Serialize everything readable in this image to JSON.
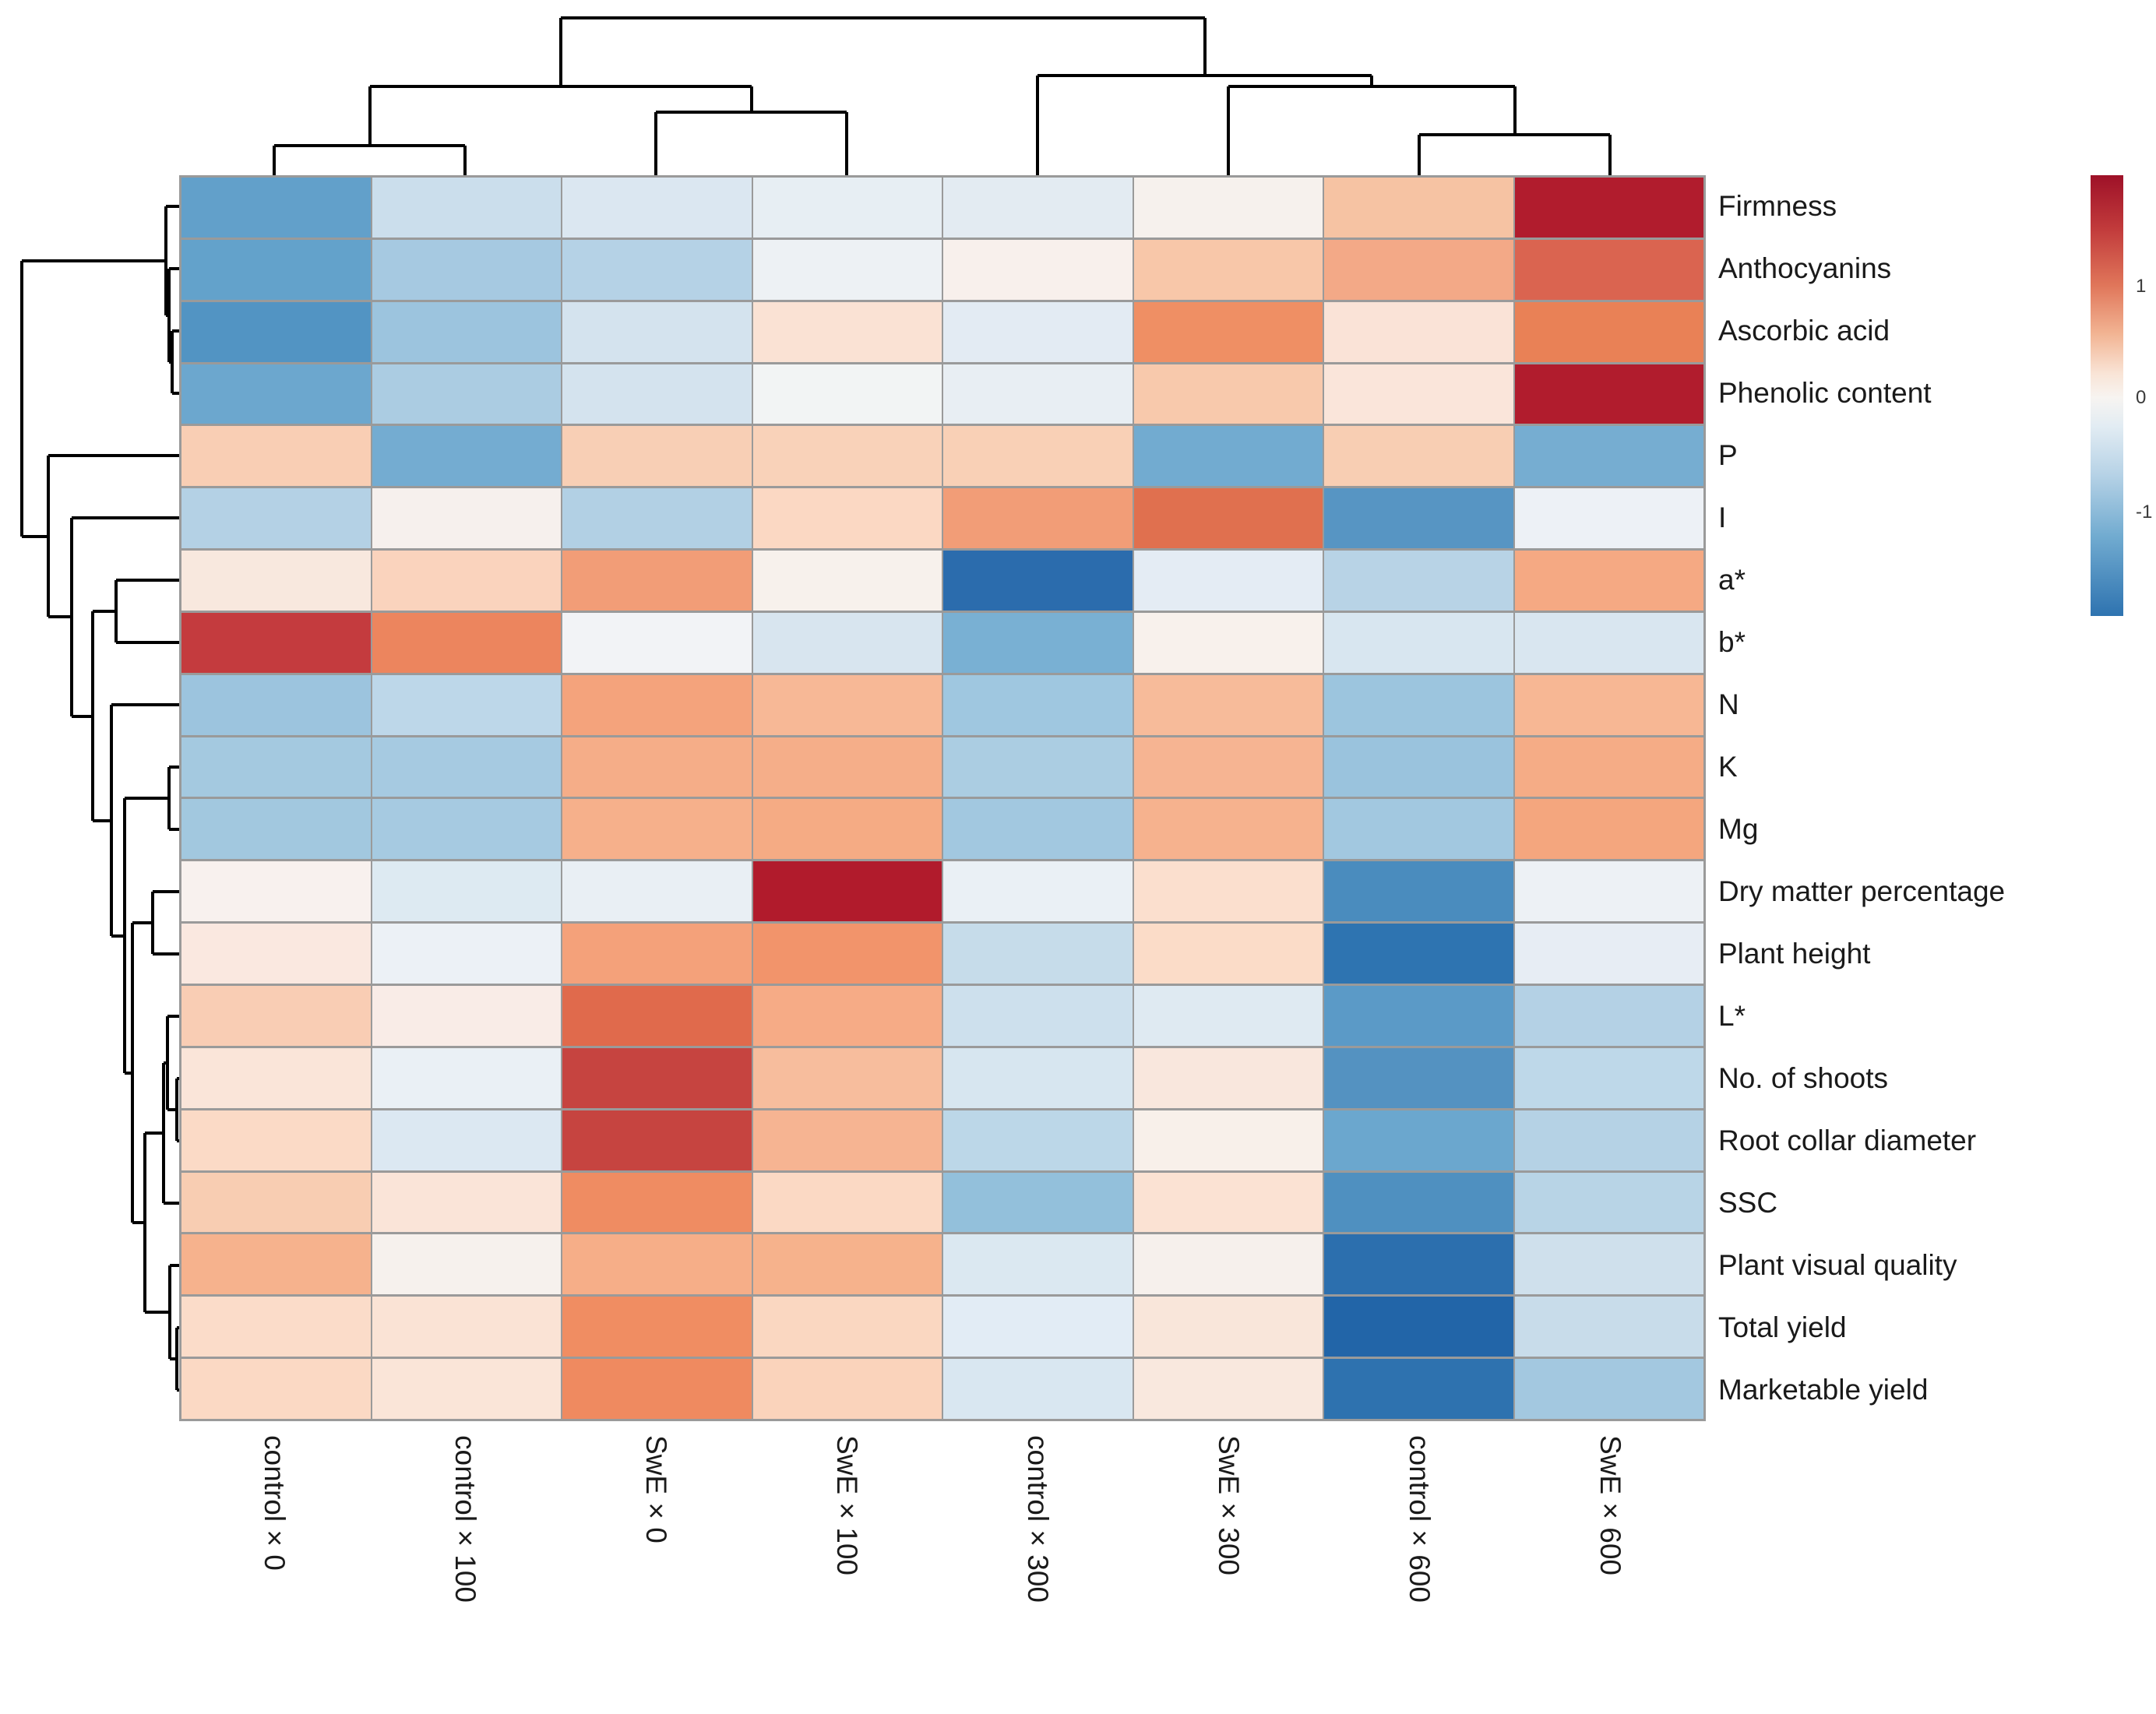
{
  "chart_data": {
    "type": "heatmap",
    "title": "",
    "subtitle": "",
    "columns": [
      "control × 0",
      "control × 100",
      "SwE × 0",
      "SwE × 100",
      "control × 300",
      "SwE × 300",
      "control × 600",
      "SwE × 600"
    ],
    "rows": [
      "Firmness",
      "Anthocyanins",
      "Ascorbic acid",
      "Phenolic content",
      "P",
      "I",
      "a*",
      "b*",
      "N",
      "K",
      "Mg",
      "Dry matter percentage",
      "Plant height",
      "L*",
      "No. of shoots",
      "Root collar diameter",
      "SSC",
      "Plant visual quality",
      "Total yield",
      "Marketable yield"
    ],
    "values": [
      [
        -1.1,
        -0.45,
        -0.3,
        -0.15,
        -0.2,
        0.1,
        0.65,
        1.9
      ],
      [
        -1.05,
        -0.65,
        -0.55,
        -0.1,
        0.1,
        0.6,
        0.9,
        1.3
      ],
      [
        -1.3,
        -0.75,
        -0.35,
        0.3,
        -0.2,
        1.2,
        0.3,
        1.15
      ],
      [
        -1.0,
        -0.6,
        -0.35,
        0.0,
        -0.15,
        0.6,
        0.3,
        1.9
      ],
      [
        0.5,
        -0.95,
        0.5,
        0.45,
        0.5,
        -0.9,
        0.5,
        -0.9
      ],
      [
        -0.6,
        0.1,
        -0.6,
        0.4,
        1.0,
        1.25,
        -1.3,
        -0.1
      ],
      [
        0.25,
        0.45,
        1.0,
        0.1,
        -1.85,
        -0.2,
        -0.55,
        0.85
      ],
      [
        1.6,
        1.2,
        -0.05,
        -0.3,
        -0.85,
        0.1,
        -0.3,
        -0.3
      ],
      [
        -0.75,
        -0.45,
        0.95,
        0.75,
        -0.7,
        0.7,
        -0.75,
        0.75
      ],
      [
        -0.65,
        -0.6,
        0.85,
        0.85,
        -0.6,
        0.75,
        -0.8,
        0.9
      ],
      [
        -0.7,
        -0.65,
        0.8,
        0.9,
        -0.7,
        0.8,
        -0.7,
        0.95
      ],
      [
        0.1,
        -0.25,
        -0.15,
        1.9,
        -0.1,
        0.4,
        -1.5,
        -0.1
      ],
      [
        0.25,
        -0.1,
        1.0,
        1.1,
        -0.4,
        0.4,
        -1.75,
        -0.15
      ],
      [
        0.55,
        0.15,
        1.25,
        0.9,
        -0.35,
        -0.25,
        -1.15,
        -0.6
      ],
      [
        0.3,
        -0.15,
        1.5,
        0.7,
        -0.3,
        0.25,
        -1.3,
        -0.5
      ],
      [
        0.45,
        -0.25,
        1.5,
        0.75,
        -0.55,
        0.1,
        -1.0,
        -0.6
      ],
      [
        0.55,
        0.3,
        1.2,
        0.4,
        -0.8,
        0.35,
        -1.35,
        -0.55
      ],
      [
        0.8,
        0.1,
        0.85,
        0.8,
        -0.3,
        0.1,
        -1.75,
        -0.4
      ],
      [
        0.4,
        0.3,
        1.2,
        0.45,
        -0.2,
        0.3,
        -1.9,
        -0.45
      ],
      [
        0.45,
        0.3,
        1.25,
        0.5,
        -0.3,
        0.25,
        -1.7,
        -0.75
      ]
    ],
    "cell_colors": [
      [
        "#62a0ca",
        "#cbdeec",
        "#dbe7f1",
        "#e7eef3",
        "#e3ebf2",
        "#f6f1ed",
        "#f6c3a3",
        "#b11c2d"
      ],
      [
        "#63a2cb",
        "#a6c9e1",
        "#b5d2e6",
        "#edf1f4",
        "#f8f0ec",
        "#f8c7a9",
        "#f3a987",
        "#da6450"
      ],
      [
        "#5294c3",
        "#9cc4de",
        "#d4e3ee",
        "#fae2d4",
        "#e3ebf3",
        "#ef8f64",
        "#fae3d7",
        "#e98156"
      ],
      [
        "#6ca7ce",
        "#abcce2",
        "#d4e3ee",
        "#f2f4f4",
        "#e8eef3",
        "#f8c9ac",
        "#fae5da",
        "#b11c2d"
      ],
      [
        "#f9ceb4",
        "#74acd1",
        "#f8cfb5",
        "#f9d2b9",
        "#f9d0b6",
        "#72abd0",
        "#f8ceb3",
        "#76add1"
      ],
      [
        "#b4d1e5",
        "#f6f0ed",
        "#b2d0e4",
        "#fbd8c3",
        "#f29d77",
        "#e0704f",
        "#5795c3",
        "#edf1f6"
      ],
      [
        "#f8e8de",
        "#fad3bd",
        "#f29d77",
        "#f7f1ec",
        "#2b6cad",
        "#e4ecf4",
        "#b8d3e6",
        "#f5a983"
      ],
      [
        "#c43b3e",
        "#ec855e",
        "#f2f3f6",
        "#d8e5ef",
        "#79b0d3",
        "#f8f1ec",
        "#d8e6f0",
        "#d9e6f0"
      ],
      [
        "#9cc4de",
        "#bdd7e9",
        "#f4a37c",
        "#f7b896",
        "#9fc7e0",
        "#f7bb9a",
        "#9cc5de",
        "#f7b794"
      ],
      [
        "#a4c9e0",
        "#a6cae1",
        "#f5ad88",
        "#f5ae89",
        "#abcde2",
        "#f6b492",
        "#9ac3dd",
        "#f5ac86"
      ],
      [
        "#a2c8df",
        "#a6cae1",
        "#f6b08b",
        "#f5ab84",
        "#a2c8e0",
        "#f6b28e",
        "#a2c8e0",
        "#f4a67e"
      ],
      [
        "#f8f1ee",
        "#ddeaf2",
        "#e9eff4",
        "#b11b2c",
        "#eaf0f5",
        "#fbdfce",
        "#4a8cbe",
        "#edf1f5"
      ],
      [
        "#fae8e0",
        "#ecf1f6",
        "#f4a17a",
        "#f2946b",
        "#c6dcea",
        "#fbdcc8",
        "#2e74b1",
        "#e7edf4"
      ],
      [
        "#f9cdb4",
        "#f9ece7",
        "#e06a4c",
        "#f6ab86",
        "#cde0ed",
        "#dfeaf2",
        "#5b9ac7",
        "#b4d1e5"
      ],
      [
        "#fae5d9",
        "#eaf0f5",
        "#c64440",
        "#f7bd9d",
        "#d7e6f0",
        "#f9e7dd",
        "#5492c1",
        "#bed8e9"
      ],
      [
        "#fbdac6",
        "#dce8f2",
        "#c64440",
        "#f6b492",
        "#bcd7e8",
        "#f8f0ea",
        "#6ba7ce",
        "#b5d2e5"
      ],
      [
        "#f8cdb2",
        "#fae4d8",
        "#ef8c62",
        "#fbd9c4",
        "#93c0db",
        "#fbe2d3",
        "#4f90c0",
        "#b8d4e6"
      ],
      [
        "#f6b28d",
        "#f6f1ed",
        "#f6ae88",
        "#f6b28c",
        "#dbe8f1",
        "#f6f0ec",
        "#2c6fae",
        "#cfe0ec"
      ],
      [
        "#fbdcc9",
        "#fae3d5",
        "#f08d62",
        "#fad7c1",
        "#e2ecf5",
        "#f9e6da",
        "#2265a8",
        "#c8dcea"
      ],
      [
        "#fbd9c4",
        "#fae5d8",
        "#ef8a60",
        "#fad3bb",
        "#d9e7f1",
        "#f9e8de",
        "#2e72af",
        "#a3c8e0"
      ]
    ],
    "value_scale": {
      "min": -2,
      "max": 2,
      "legend_ticks": [
        "1",
        "0",
        "-1"
      ]
    },
    "colormap": "red-white-blue (red = high, blue = low)",
    "legend_position": "right",
    "grid": true,
    "clustering": {
      "row_tree_newick": "((Firmness,(Anthocyanins,(Ascorbic acid,Phenolic content))),(P,(I,((a*,b*),(N,((K,Mg),((Dry matter percentage,Plant height),(((L*,(No. of shoots,Root collar diameter)),SSC),(Plant visual quality,(Total yield,Marketable yield))))))))))",
      "column_tree_newick": "(((control × 0,control × 100),(SwE × 0,SwE × 100)),(control × 300,(SwE × 300,(control × 600,SwE × 600))))"
    }
  },
  "dendrograms": {
    "line_color": "#000000",
    "row_segments": [
      [
        28,
        335,
        28,
        689
      ],
      [
        28,
        335,
        213,
        335
      ],
      [
        28,
        689,
        62,
        689
      ],
      [
        213,
        265,
        213,
        405
      ],
      [
        213,
        265,
        230,
        265
      ],
      [
        213,
        405,
        217,
        405
      ],
      [
        217,
        345,
        217,
        465
      ],
      [
        217,
        345,
        230,
        345
      ],
      [
        217,
        465,
        221,
        465
      ],
      [
        221,
        425,
        221,
        505
      ],
      [
        221,
        425,
        230,
        425
      ],
      [
        221,
        505,
        230,
        505
      ],
      [
        62,
        585,
        62,
        792
      ],
      [
        62,
        585,
        230,
        585
      ],
      [
        62,
        792,
        92,
        792
      ],
      [
        92,
        665,
        92,
        920
      ],
      [
        92,
        665,
        230,
        665
      ],
      [
        92,
        920,
        119,
        920
      ],
      [
        119,
        785,
        119,
        1054
      ],
      [
        119,
        785,
        149,
        785
      ],
      [
        119,
        1054,
        143,
        1054
      ],
      [
        149,
        745,
        149,
        825
      ],
      [
        149,
        745,
        230,
        745
      ],
      [
        149,
        825,
        230,
        825
      ],
      [
        143,
        905,
        143,
        1202
      ],
      [
        143,
        905,
        230,
        905
      ],
      [
        143,
        1202,
        160,
        1202
      ],
      [
        160,
        1025,
        160,
        1378
      ],
      [
        160,
        1025,
        217,
        1025
      ],
      [
        160,
        1378,
        170,
        1378
      ],
      [
        217,
        985,
        217,
        1065
      ],
      [
        217,
        985,
        230,
        985
      ],
      [
        217,
        1065,
        230,
        1065
      ],
      [
        170,
        1185,
        170,
        1570
      ],
      [
        170,
        1185,
        196,
        1185
      ],
      [
        170,
        1570,
        186,
        1570
      ],
      [
        196,
        1145,
        196,
        1225
      ],
      [
        196,
        1145,
        230,
        1145
      ],
      [
        196,
        1225,
        230,
        1225
      ],
      [
        186,
        1455,
        186,
        1685
      ],
      [
        186,
        1455,
        210,
        1455
      ],
      [
        186,
        1685,
        218,
        1685
      ],
      [
        210,
        1365,
        210,
        1545
      ],
      [
        210,
        1365,
        215,
        1365
      ],
      [
        210,
        1545,
        230,
        1545
      ],
      [
        215,
        1305,
        215,
        1425
      ],
      [
        215,
        1305,
        230,
        1305
      ],
      [
        215,
        1425,
        227,
        1425
      ],
      [
        227,
        1385,
        227,
        1465
      ],
      [
        227,
        1385,
        230,
        1385
      ],
      [
        227,
        1465,
        230,
        1465
      ],
      [
        218,
        1625,
        218,
        1745
      ],
      [
        218,
        1625,
        230,
        1625
      ],
      [
        218,
        1745,
        227,
        1745
      ],
      [
        227,
        1705,
        227,
        1785
      ],
      [
        227,
        1705,
        230,
        1705
      ],
      [
        227,
        1785,
        230,
        1785
      ]
    ],
    "column_segments": [
      [
        720,
        23,
        1547,
        23
      ],
      [
        720,
        23,
        720,
        111
      ],
      [
        1547,
        23,
        1547,
        97
      ],
      [
        475,
        111,
        965,
        111
      ],
      [
        475,
        111,
        475,
        187
      ],
      [
        965,
        111,
        965,
        144
      ],
      [
        352,
        187,
        597,
        187
      ],
      [
        352,
        187,
        352,
        225
      ],
      [
        597,
        187,
        597,
        225
      ],
      [
        842,
        144,
        1087,
        144
      ],
      [
        842,
        144,
        842,
        225
      ],
      [
        1087,
        144,
        1087,
        225
      ],
      [
        1332,
        97,
        1761,
        97
      ],
      [
        1332,
        97,
        1332,
        225
      ],
      [
        1761,
        97,
        1761,
        111
      ],
      [
        1577,
        111,
        1945,
        111
      ],
      [
        1577,
        111,
        1577,
        225
      ],
      [
        1945,
        111,
        1945,
        173
      ],
      [
        1822,
        173,
        2067,
        173
      ],
      [
        1822,
        173,
        1822,
        225
      ],
      [
        2067,
        173,
        2067,
        225
      ]
    ]
  },
  "legend": {
    "gradient_stops": [
      [
        0,
        "#9e1128"
      ],
      [
        0.12,
        "#c13a3b"
      ],
      [
        0.25,
        "#e0765a"
      ],
      [
        0.36,
        "#f2b493"
      ],
      [
        0.45,
        "#f9e4d6"
      ],
      [
        0.505,
        "#f7f4f1"
      ],
      [
        0.57,
        "#e2ecf3"
      ],
      [
        0.68,
        "#b6d2e6"
      ],
      [
        0.82,
        "#71abd0"
      ],
      [
        1,
        "#2e73b0"
      ]
    ],
    "ticks": [
      {
        "label": "1",
        "pos": 0.253
      },
      {
        "label": "0",
        "pos": 0.505
      },
      {
        "label": "-1",
        "pos": 0.765
      }
    ]
  },
  "style": {
    "grid_line_color": "#9a9a9a",
    "label_color": "#1a1a1a",
    "background": "#ffffff"
  }
}
